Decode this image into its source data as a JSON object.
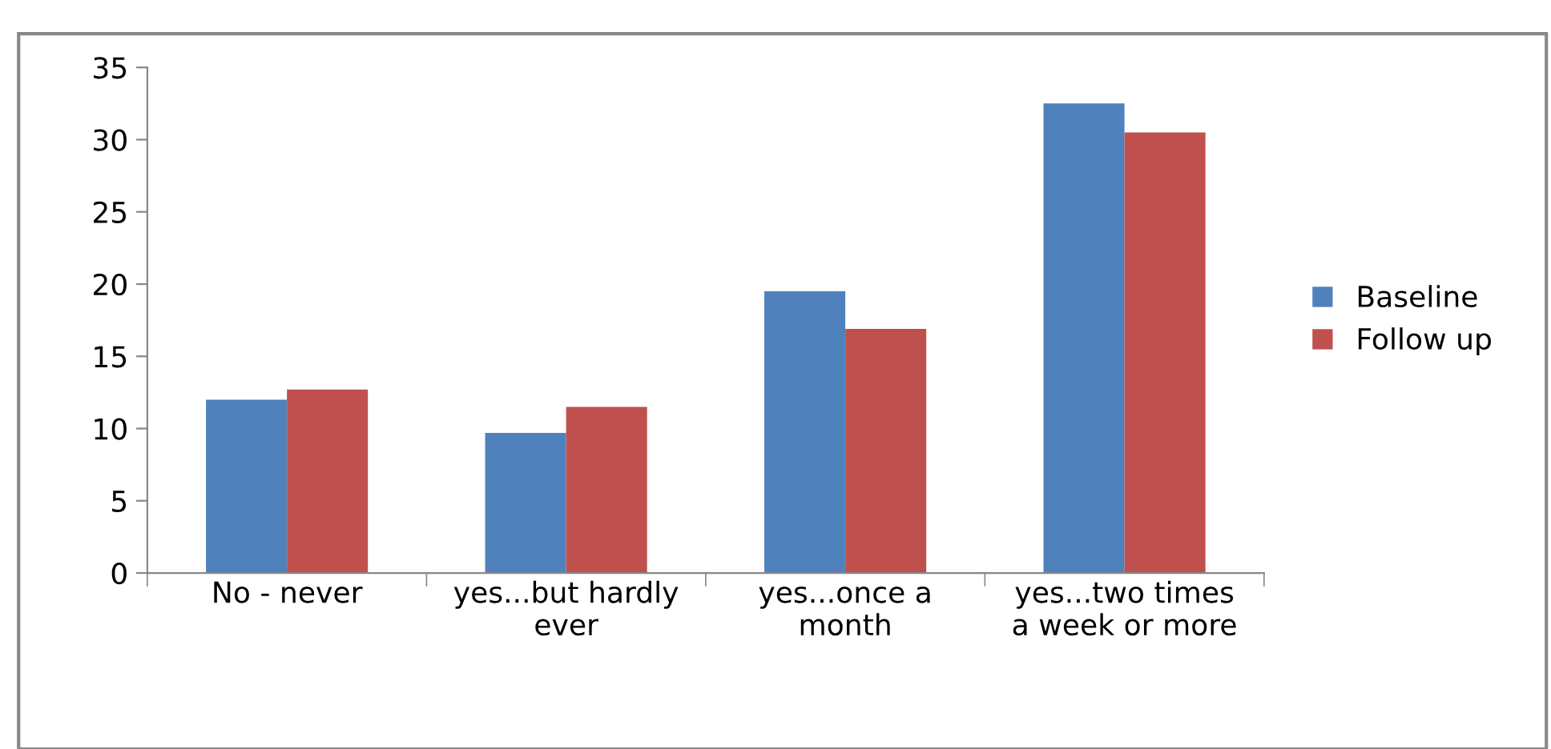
{
  "chart_data": {
    "type": "bar",
    "categories": [
      "No - never",
      "yes...but hardly\never",
      "yes...once a\nmonth",
      "yes...two times\na week or more"
    ],
    "series": [
      {
        "name": "Baseline",
        "color": "#4f81bd",
        "values": [
          12.0,
          9.7,
          19.5,
          32.5
        ]
      },
      {
        "name": "Follow up",
        "color": "#c0504d",
        "values": [
          12.7,
          11.5,
          16.9,
          30.5
        ]
      }
    ],
    "ylim": [
      0,
      35
    ],
    "yticks": [
      0,
      5,
      10,
      15,
      20,
      25,
      30,
      35
    ],
    "grid": false,
    "legend": "right"
  }
}
